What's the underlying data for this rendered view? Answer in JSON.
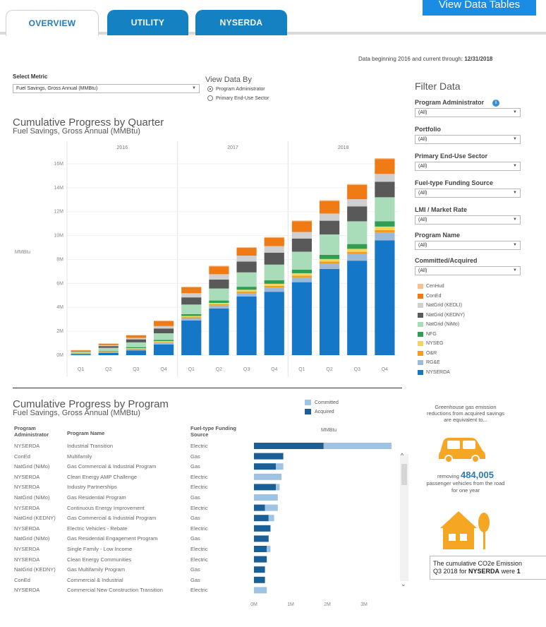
{
  "tabs": [
    {
      "label": "OVERVIEW",
      "active": true
    },
    {
      "label": "UTILITY",
      "active": false
    },
    {
      "label": "NYSERDA",
      "active": false
    }
  ],
  "view_tables_button": "View Data Tables",
  "data_through": {
    "prefix": "Data beginning 2016 and current through:",
    "date": "12/31/2018"
  },
  "select_metric": {
    "label": "Select Metric",
    "value": "Fuel Savings, Gross Annual (MMBtu)"
  },
  "view_data_by": {
    "label": "View Data By",
    "options": [
      {
        "label": "Program Administrator",
        "selected": true
      },
      {
        "label": "Primary End-Use Sector",
        "selected": false
      }
    ]
  },
  "filter": {
    "title": "Filter Data",
    "fields": [
      {
        "label": "Program Administrator",
        "value": "(All)"
      },
      {
        "label": "Portfolio",
        "value": "(All)"
      },
      {
        "label": "Primary End-Use Sector",
        "value": "(All)"
      },
      {
        "label": "Fuel-type Funding Source",
        "value": "(All)"
      },
      {
        "label": "LMI / Market Rate",
        "value": "(All)"
      },
      {
        "label": "Program Name",
        "value": "(All)"
      },
      {
        "label": "Committed/Acquired",
        "value": "(All)"
      }
    ],
    "legend": [
      {
        "name": "CenHud",
        "color": "#f6c08a"
      },
      {
        "name": "ConEd",
        "color": "#f07a14"
      },
      {
        "name": "NatGrid (KEDLI)",
        "color": "#cfcfcf"
      },
      {
        "name": "NatGrid (KEDNY)",
        "color": "#595959"
      },
      {
        "name": "NatGrid (NiMo)",
        "color": "#a9dcb9"
      },
      {
        "name": "NFG",
        "color": "#2f9e53"
      },
      {
        "name": "NYSEG",
        "color": "#f3d65a"
      },
      {
        "name": "O&R",
        "color": "#f59b1d"
      },
      {
        "name": "RG&E",
        "color": "#9bbad9"
      },
      {
        "name": "NYSERDA",
        "color": "#1577c8"
      }
    ]
  },
  "chart_quarter": {
    "title": "Cumulative Progress by Quarter",
    "subtitle": "Fuel Savings, Gross Annual (MMBtu)"
  },
  "chart_data": [
    {
      "type": "bar",
      "stacked": true,
      "title": "Cumulative Progress by Quarter",
      "subtitle": "Fuel Savings, Gross Annual (MMBtu)",
      "ylabel": "MMBtu",
      "years": [
        "2016",
        "2017",
        "2018"
      ],
      "categories": [
        "Q1",
        "Q2",
        "Q3",
        "Q4",
        "Q1",
        "Q2",
        "Q3",
        "Q4",
        "Q1",
        "Q2",
        "Q3",
        "Q4"
      ],
      "ylim": [
        0,
        17
      ],
      "yticks": [
        "0M",
        "2M",
        "4M",
        "6M",
        "8M",
        "10M",
        "12M",
        "14M",
        "16M"
      ],
      "series": [
        {
          "name": "NYSERDA",
          "values": [
            0.1,
            0.2,
            0.4,
            0.9,
            2.9,
            3.9,
            4.9,
            5.3,
            6.1,
            7.2,
            7.9,
            9.6
          ]
        },
        {
          "name": "RG&E",
          "values": [
            0.02,
            0.05,
            0.1,
            0.15,
            0.2,
            0.25,
            0.3,
            0.35,
            0.4,
            0.45,
            0.55,
            0.65
          ]
        },
        {
          "name": "O&R",
          "values": [
            0.02,
            0.03,
            0.04,
            0.05,
            0.08,
            0.1,
            0.12,
            0.14,
            0.15,
            0.17,
            0.19,
            0.2
          ]
        },
        {
          "name": "NYSEG",
          "values": [
            0.02,
            0.03,
            0.05,
            0.08,
            0.1,
            0.12,
            0.15,
            0.18,
            0.2,
            0.22,
            0.25,
            0.3
          ]
        },
        {
          "name": "NFG",
          "values": [
            0.03,
            0.05,
            0.08,
            0.1,
            0.15,
            0.2,
            0.25,
            0.3,
            0.3,
            0.35,
            0.4,
            0.45
          ]
        },
        {
          "name": "NatGrid (NiMo)",
          "values": [
            0.1,
            0.25,
            0.4,
            0.55,
            0.8,
            1.0,
            1.2,
            1.3,
            1.5,
            1.7,
            1.9,
            2.0
          ]
        },
        {
          "name": "NatGrid (KEDNY)",
          "values": [
            0.05,
            0.15,
            0.25,
            0.4,
            0.6,
            0.75,
            0.9,
            1.0,
            1.1,
            1.15,
            1.25,
            1.3
          ]
        },
        {
          "name": "NatGrid (KEDLI)",
          "values": [
            0.03,
            0.08,
            0.12,
            0.2,
            0.35,
            0.45,
            0.5,
            0.55,
            0.55,
            0.6,
            0.6,
            0.65
          ]
        },
        {
          "name": "ConEd",
          "values": [
            0.05,
            0.12,
            0.22,
            0.42,
            0.5,
            0.65,
            0.65,
            0.7,
            0.9,
            1.05,
            1.2,
            1.25
          ]
        },
        {
          "name": "CenHud",
          "values": [
            0.01,
            0.02,
            0.03,
            0.05,
            0.05,
            0.06,
            0.06,
            0.06,
            0.06,
            0.07,
            0.07,
            0.07
          ]
        }
      ]
    },
    {
      "type": "bar",
      "orientation": "horizontal",
      "stacked": true,
      "title": "Cumulative Progress by Program",
      "subtitle": "Fuel Savings, Gross Annual (MMBtu)",
      "xlabel": "MMBtu",
      "xlim": [
        0,
        4
      ],
      "xticks": [
        "0M",
        "1M",
        "2M",
        "3M"
      ],
      "series": [
        {
          "name": "Acquired",
          "values": [
            1.9,
            0.8,
            0.6,
            0.0,
            0.6,
            0.0,
            0.3,
            0.4,
            0.45,
            0.4,
            0.35,
            0.35,
            0.3,
            0.3,
            0.0
          ]
        },
        {
          "name": "Committed",
          "values": [
            1.85,
            0.0,
            0.2,
            0.75,
            0.1,
            0.65,
            0.35,
            0.15,
            0.0,
            0.0,
            0.1,
            0.0,
            0.0,
            0.0,
            0.35
          ]
        }
      ]
    }
  ],
  "chart_program": {
    "title": "Cumulative Progress by Program",
    "subtitle": "Fuel Savings, Gross Annual (MMBtu)",
    "axis_label": "MMBtu",
    "legend": [
      {
        "name": "Committed",
        "color": "#9ec3e3"
      },
      {
        "name": "Acquired",
        "color": "#1a5f96"
      }
    ],
    "headers": {
      "admin": "Program Administrator",
      "name": "Program Name",
      "fuel": "Fuel-type Funding Source"
    },
    "rows": [
      {
        "admin": "NYSERDA",
        "name": "Industrial Transition",
        "fuel": "Electric"
      },
      {
        "admin": "ConEd",
        "name": "Multifamily",
        "fuel": "Gas"
      },
      {
        "admin": "NatGrid (NiMo)",
        "name": "Gas Commercial & Industrial Program",
        "fuel": "Gas"
      },
      {
        "admin": "NYSERDA",
        "name": "Clean Energy AMP Challenge",
        "fuel": "Electric"
      },
      {
        "admin": "NYSERDA",
        "name": "Industry Partnerships",
        "fuel": "Electric"
      },
      {
        "admin": "NatGrid (NiMo)",
        "name": "Gas Residential Program",
        "fuel": "Gas"
      },
      {
        "admin": "NYSERDA",
        "name": "Continuous Energy Improvement",
        "fuel": "Electric"
      },
      {
        "admin": "NatGrid (KEDNY)",
        "name": "Gas Commercial & Industrial Program",
        "fuel": "Gas"
      },
      {
        "admin": "NYSERDA",
        "name": "Electric Vehicles - Rebate",
        "fuel": "Electric"
      },
      {
        "admin": "NatGrid (NiMo)",
        "name": "Gas Residential Engagement Program",
        "fuel": "Gas"
      },
      {
        "admin": "NYSERDA",
        "name": "Single Family - Low Income",
        "fuel": "Electric"
      },
      {
        "admin": "NYSERDA",
        "name": "Clean Energy Communities",
        "fuel": "Electric"
      },
      {
        "admin": "NatGrid (KEDNY)",
        "name": "Gas Multifamily Program",
        "fuel": "Gas"
      },
      {
        "admin": "ConEd",
        "name": "Commercial & Industrial",
        "fuel": "Gas"
      },
      {
        "admin": "NYSERDA",
        "name": "Commercial New Construction Transition",
        "fuel": "Electric"
      }
    ]
  },
  "ghg": {
    "intro": "Greenhouse gas emission reductions from acquired savings are equivalent to...",
    "car_prefix": "removing",
    "car_number": "484,005",
    "car_suffix": "passenger vehicles from the road for one year",
    "car_color": "#f5a623",
    "house_color": "#f5a623"
  },
  "tooltip": {
    "line1": "The cumulative CO2e Emission",
    "line2_prefix": "Q3 2018 for",
    "line2_bold": "NYSERDA",
    "line2_suffix": "were",
    "line2_bold_end": "1"
  }
}
